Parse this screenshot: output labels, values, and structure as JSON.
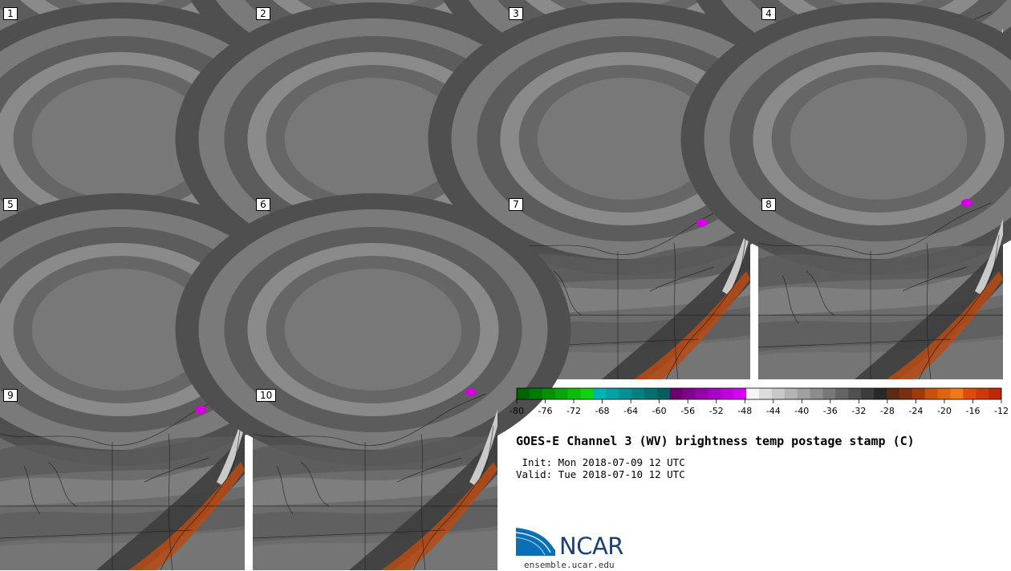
{
  "panels": [
    {
      "label": "1"
    },
    {
      "label": "2"
    },
    {
      "label": "3"
    },
    {
      "label": "4"
    },
    {
      "label": "5"
    },
    {
      "label": "6"
    },
    {
      "label": "7"
    },
    {
      "label": "8"
    },
    {
      "label": "9"
    },
    {
      "label": "10"
    }
  ],
  "colorbar": {
    "ticks": [
      "-80",
      "-76",
      "-72",
      "-68",
      "-64",
      "-60",
      "-56",
      "-52",
      "-48",
      "-44",
      "-40",
      "-36",
      "-32",
      "-28",
      "-24",
      "-20",
      "-16",
      "-12"
    ],
    "colors": [
      "#006400",
      "#037a03",
      "#069006",
      "#08a608",
      "#0bbd0b",
      "#0ed30e",
      "#00b4b4",
      "#00a3a3",
      "#009292",
      "#008181",
      "#007070",
      "#006060",
      "#6e006e",
      "#82008c",
      "#9600a9",
      "#aa00c4",
      "#c000dc",
      "#d700f0",
      "#f5f5f5",
      "#dcdcdc",
      "#c8c8c8",
      "#b4b4b4",
      "#a0a0a0",
      "#8c8c8c",
      "#787878",
      "#646464",
      "#505050",
      "#3c3c3c",
      "#282828",
      "#5a2a14",
      "#7a2f10",
      "#9e3a0c",
      "#c8500a",
      "#e06410",
      "#f07818",
      "#e04a0c",
      "#d0380a",
      "#c02808"
    ]
  },
  "title": "GOES-E Channel 3 (WV) brightness temp postage stamp (C)",
  "init": " Init: Mon 2018-07-09 12 UTC",
  "valid": "Valid: Tue 2018-07-10 12 UTC",
  "logo": {
    "text": "NCAR",
    "color": "#1c3f75"
  },
  "website": "ensemble.ucar.edu"
}
